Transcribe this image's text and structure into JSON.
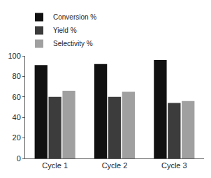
{
  "chart_data": {
    "type": "bar",
    "categories": [
      "Cycle 1",
      "Cycle 2",
      "Cycle 3"
    ],
    "series": [
      {
        "name": "Conversion %",
        "color": "#111111",
        "values": [
          91,
          92,
          96
        ]
      },
      {
        "name": "Yield %",
        "color": "#3c3c3c",
        "values": [
          60,
          60,
          54
        ]
      },
      {
        "name": "Selectivity %",
        "color": "#a0a0a0",
        "values": [
          66,
          65,
          56
        ]
      }
    ],
    "ylim": [
      0,
      100
    ],
    "yticks": [
      0,
      20,
      40,
      60,
      80,
      100
    ],
    "grid": false,
    "legend": "top left"
  }
}
